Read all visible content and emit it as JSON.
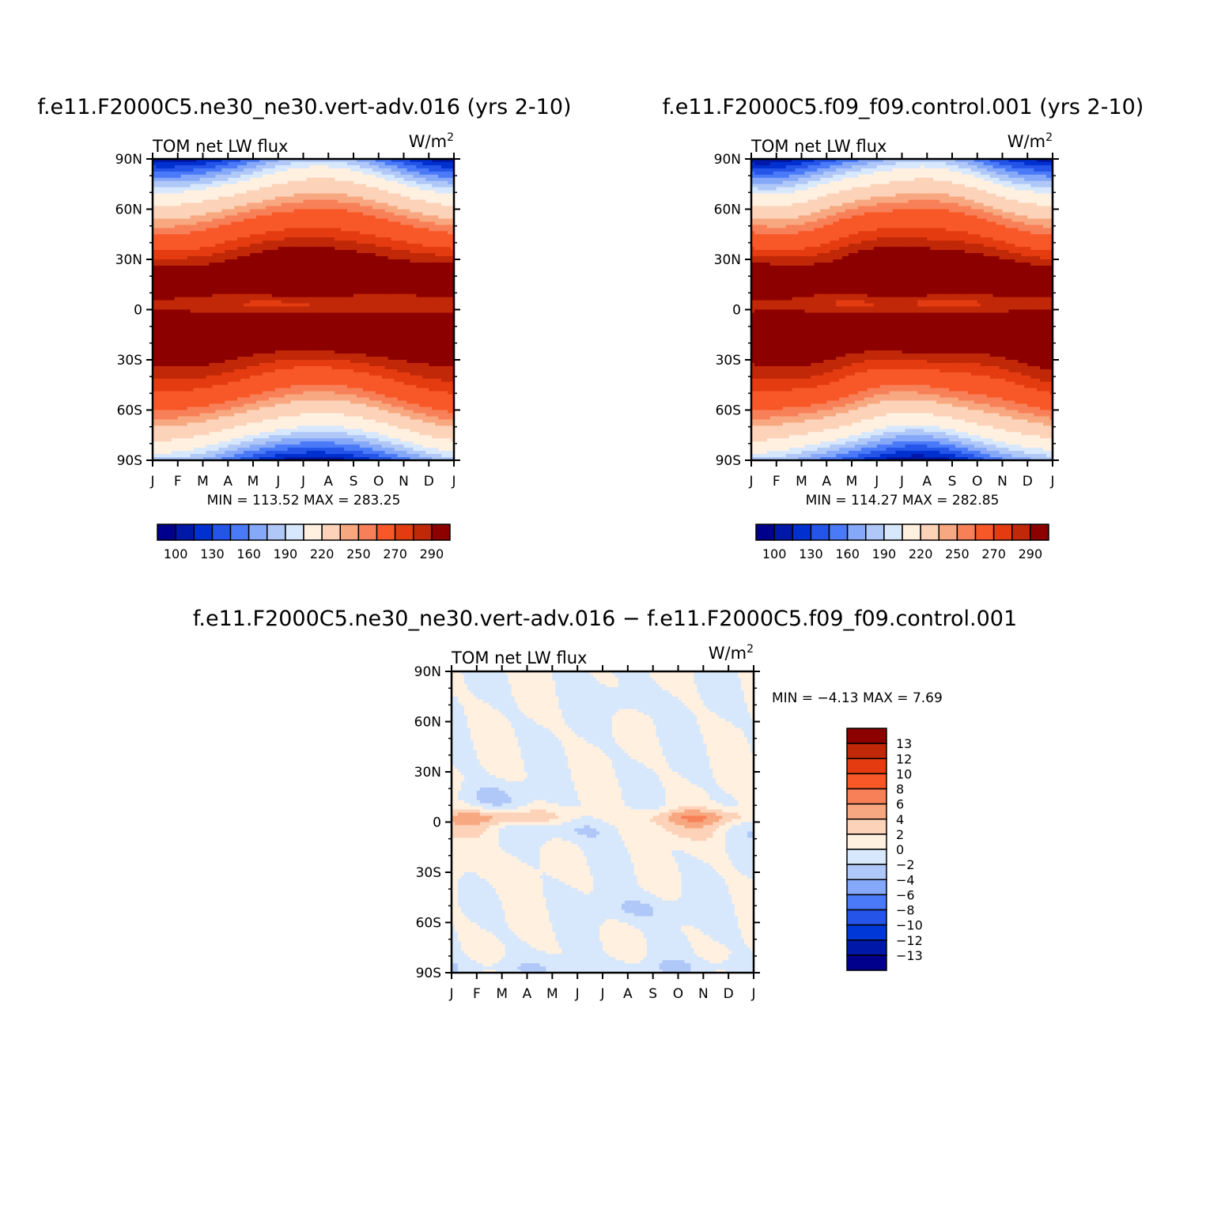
{
  "chart_data": [
    {
      "type": "heatmap",
      "title": "f.e11.F2000C5.ne30_ne30.vert-adv.016 (yrs 2-10)",
      "left_label": "TOM  net  LW  flux",
      "units_base": "W/m",
      "units_exp": "2",
      "stats_text": "MIN  =  113.52  MAX  =  283.25",
      "min": 113.52,
      "max": 283.25,
      "x_ticks": [
        "J",
        "F",
        "M",
        "A",
        "M",
        "J",
        "J",
        "A",
        "S",
        "O",
        "N",
        "D",
        "J"
      ],
      "y_ticks": [
        "90N",
        "60N",
        "30N",
        "0",
        "30S",
        "60S",
        "90S"
      ],
      "colorbar_labels": [
        "100",
        "130",
        "160",
        "190",
        "220",
        "250",
        "270",
        "290"
      ],
      "levels": [
        100,
        110,
        120,
        130,
        140,
        150,
        160,
        170,
        190,
        210,
        220,
        230,
        250,
        260,
        270,
        280,
        290
      ],
      "profile": "full_a"
    },
    {
      "type": "heatmap",
      "title": "f.e11.F2000C5.f09_f09.control.001 (yrs 2-10)",
      "left_label": "TOM  net  LW  flux",
      "units_base": "W/m",
      "units_exp": "2",
      "stats_text": "MIN  =  114.27  MAX  =  282.85",
      "min": 114.27,
      "max": 282.85,
      "x_ticks": [
        "J",
        "F",
        "M",
        "A",
        "M",
        "J",
        "J",
        "A",
        "S",
        "O",
        "N",
        "D",
        "J"
      ],
      "y_ticks": [
        "90N",
        "60N",
        "30N",
        "0",
        "30S",
        "60S",
        "90S"
      ],
      "colorbar_labels": [
        "100",
        "130",
        "160",
        "190",
        "220",
        "250",
        "270",
        "290"
      ],
      "levels": [
        100,
        110,
        120,
        130,
        140,
        150,
        160,
        170,
        190,
        210,
        220,
        230,
        250,
        260,
        270,
        280,
        290
      ],
      "profile": "full_b"
    },
    {
      "type": "heatmap",
      "title": "f.e11.F2000C5.ne30_ne30.vert-adv.016 − f.e11.F2000C5.f09_f09.control.001",
      "left_label": "TOM  net  LW  flux",
      "units_base": "W/m",
      "units_exp": "2",
      "stats_text": "MIN  =    −4.13  MAX  =     7.69",
      "min": -4.13,
      "max": 7.69,
      "x_ticks": [
        "J",
        "F",
        "M",
        "A",
        "M",
        "J",
        "J",
        "A",
        "S",
        "O",
        "N",
        "D",
        "J"
      ],
      "y_ticks": [
        "90N",
        "60N",
        "30N",
        "0",
        "30S",
        "60S",
        "90S"
      ],
      "colorbar_labels": [
        "13",
        "12",
        "10",
        "8",
        "6",
        "4",
        "2",
        "0",
        "−2",
        "−4",
        "−6",
        "−8",
        "−10",
        "−12",
        "−13"
      ],
      "levels": [
        -13,
        -12,
        -10,
        -8,
        -6,
        -4,
        -2,
        0,
        2,
        4,
        6,
        8,
        10,
        12,
        13
      ],
      "profile": "diff"
    }
  ],
  "colors": {
    "seq16": [
      "#00008c",
      "#0018a8",
      "#0030d0",
      "#2454e8",
      "#4a7af8",
      "#86a8f8",
      "#b0c8f8",
      "#d8e8fc",
      "#fff0e0",
      "#fcd2b8",
      "#f8a880",
      "#f88058",
      "#f85828",
      "#e43c10",
      "#c02808",
      "#8c0000"
    ],
    "div16": [
      "#00008c",
      "#0018a8",
      "#0038d8",
      "#2454e8",
      "#4a7af8",
      "#86a8f8",
      "#b0c8f8",
      "#d8e8fc",
      "#fff0e0",
      "#fcd2b8",
      "#f8a880",
      "#f88058",
      "#f85828",
      "#e43c10",
      "#c02808",
      "#8c0000"
    ]
  }
}
